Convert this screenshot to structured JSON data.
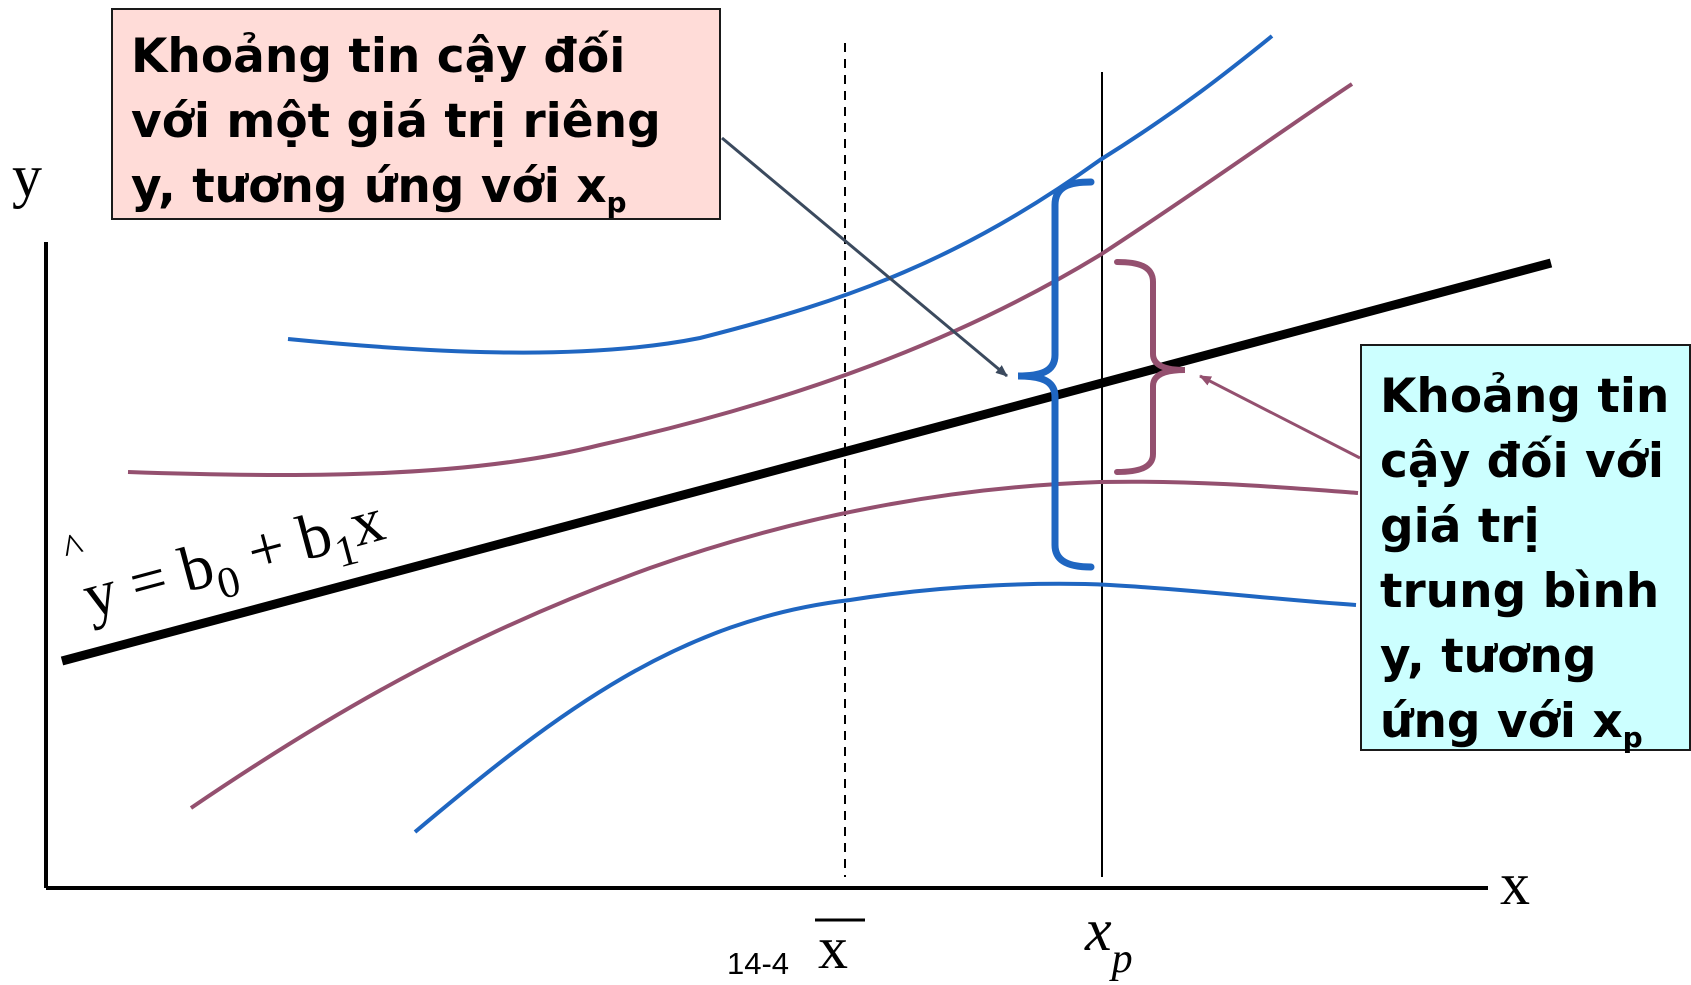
{
  "axes": {
    "y_label": "y",
    "x_label": "x",
    "x_mean_label": "x",
    "x_p_label": "x",
    "x_p_subscript": "p"
  },
  "regression_equation": {
    "hat": "^",
    "lhs": "y",
    "eq": " = ",
    "b0": "b",
    "b0_sub": "0",
    "plus": " + ",
    "b1": "b",
    "b1_sub": "1",
    "x": "x"
  },
  "callouts": {
    "individual": {
      "lines": [
        "Khoảng tin cậy đối",
        "với một giá trị riêng",
        "y, tương ứng với x"
      ],
      "subscript": "p"
    },
    "mean": {
      "lines": [
        "Khoảng tin",
        "cậy đối với",
        "giá trị",
        "trung bình",
        "y, tương",
        "ứng với x"
      ],
      "subscript": "p"
    }
  },
  "page_number": "14-4",
  "colors": {
    "regression_line": "#000000",
    "prediction_band": "#1f66c1",
    "confidence_band": "#94506f",
    "individual_callout_bg": "#ffdcd8",
    "mean_callout_bg": "#ccffff",
    "arrow_individual": "#3b4a5e",
    "arrow_mean": "#94506f"
  }
}
